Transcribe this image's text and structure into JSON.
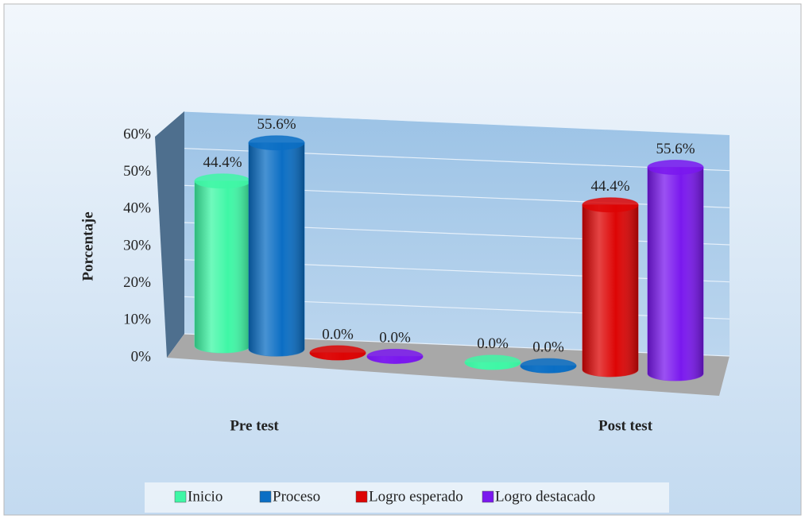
{
  "chart_data": {
    "type": "bar3d",
    "y_axis_label": "Porcentaje",
    "categories": [
      "Pre test",
      "Post test"
    ],
    "series": [
      {
        "name": "Inicio",
        "color": "#3ff7a6",
        "values": [
          44.4,
          0.0
        ],
        "value_labels": [
          "44.4%",
          "0.0%"
        ]
      },
      {
        "name": "Proceso",
        "color": "#0b6ec4",
        "values": [
          55.6,
          0.0
        ],
        "value_labels": [
          "55.6%",
          "0.0%"
        ]
      },
      {
        "name": "Logro esperado",
        "color": "#dd0505",
        "values": [
          0.0,
          44.4
        ],
        "value_labels": [
          "0.0%",
          "44.4%"
        ]
      },
      {
        "name": "Logro destacado",
        "color": "#7a18ee",
        "values": [
          0.0,
          55.6
        ],
        "value_labels": [
          "0.0%",
          "55.6%"
        ]
      }
    ],
    "ylim": [
      0,
      60
    ],
    "yticks": [
      {
        "value": 0,
        "label": "0%"
      },
      {
        "value": 10,
        "label": "10%"
      },
      {
        "value": 20,
        "label": "20%"
      },
      {
        "value": 30,
        "label": "30%"
      },
      {
        "value": 40,
        "label": "40%"
      },
      {
        "value": 50,
        "label": "50%"
      },
      {
        "value": 60,
        "label": "60%"
      }
    ],
    "grid": true,
    "legend": "bottom"
  }
}
